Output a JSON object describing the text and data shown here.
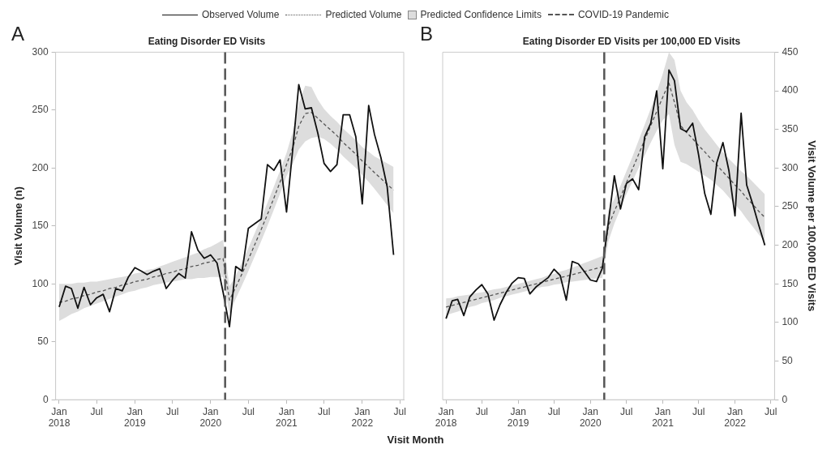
{
  "chart_data": [
    {
      "type": "line",
      "title": "Eating Disorder ED Visits",
      "xlabel": "Visit Month",
      "ylabel": "Visit Volume (n)",
      "annotations": [
        "A",
        "Predicted Confidence Limits"
      ],
      "legend": "top",
      "grid": false,
      "marker": "none",
      "x": [
        "2018-01",
        "2018-02",
        "2018-03",
        "2018-04",
        "2018-05",
        "2018-06",
        "2018-07",
        "2018-08",
        "2018-09",
        "2018-10",
        "2018-11",
        "2018-12",
        "2019-01",
        "2019-02",
        "2019-03",
        "2019-04",
        "2019-05",
        "2019-06",
        "2019-07",
        "2019-08",
        "2019-09",
        "2019-10",
        "2019-11",
        "2019-12",
        "2020-01",
        "2020-02",
        "2020-03",
        "2020-04",
        "2020-05",
        "2020-06",
        "2020-07",
        "2020-08",
        "2020-09",
        "2020-10",
        "2020-11",
        "2020-12",
        "2021-01",
        "2021-02",
        "2021-03",
        "2021-04",
        "2021-05",
        "2021-06",
        "2021-07",
        "2021-08",
        "2021-09",
        "2021-10",
        "2021-11",
        "2021-12",
        "2022-01",
        "2022-02",
        "2022-03",
        "2022-04",
        "2022-05",
        "2022-06"
      ],
      "xlim": [
        "2017-12-15",
        "2022-07-20"
      ],
      "xticks": [
        {
          "value": "2018-01",
          "label": "Jan 2018"
        },
        {
          "value": "2018-07",
          "label": "Jul"
        },
        {
          "value": "2019-01",
          "label": "Jan 2019"
        },
        {
          "value": "2019-07",
          "label": "Jul"
        },
        {
          "value": "2020-01",
          "label": "Jan 2020"
        },
        {
          "value": "2020-07",
          "label": "Jul"
        },
        {
          "value": "2021-01",
          "label": "Jan 2021"
        },
        {
          "value": "2021-07",
          "label": "Jul"
        },
        {
          "value": "2022-01",
          "label": "Jan 2022"
        },
        {
          "value": "2022-07",
          "label": "Jul"
        }
      ],
      "ylim": [
        0,
        300
      ],
      "yticks": [
        0,
        50,
        100,
        150,
        200,
        250,
        300
      ],
      "ref_lines": [
        {
          "axis": "x",
          "value": "2020-03-11",
          "label": "COVID-19 Pandemic",
          "color": "#555555",
          "line_style": "dashed"
        }
      ],
      "series": [
        {
          "name": "Observed Volume",
          "color": "#111111",
          "line_style": "solid",
          "values": [
            80,
            98,
            96,
            79,
            97,
            82,
            88,
            91,
            76,
            96,
            94,
            106,
            114,
            111,
            108,
            111,
            113,
            96,
            103,
            109,
            105,
            145,
            129,
            122,
            125,
            118,
            93,
            63,
            115,
            111,
            148,
            152,
            156,
            203,
            198,
            207,
            162,
            218,
            272,
            251,
            252,
            230,
            204,
            197,
            203,
            246,
            246,
            227,
            169,
            254,
            229,
            209,
            184,
            125
          ]
        },
        {
          "name": "Predicted Volume",
          "color": "#555555",
          "line_style": "dashed",
          "values": [
            84,
            85,
            87,
            88,
            90,
            91,
            93,
            94,
            96,
            97,
            99,
            100,
            102,
            103,
            104,
            106,
            107,
            109,
            110,
            112,
            113,
            115,
            116,
            118,
            119,
            121,
            122,
            86,
            97,
            109,
            121,
            134,
            147,
            160,
            174,
            188,
            203,
            218,
            236,
            247,
            248,
            243,
            238,
            233,
            228,
            222,
            217,
            212,
            206,
            201,
            196,
            191,
            186,
            181
          ],
          "lower": [
            68,
            71,
            74,
            76,
            79,
            81,
            83,
            85,
            87,
            89,
            91,
            93,
            94,
            96,
            97,
            99,
            100,
            101,
            102,
            103,
            104,
            104,
            105,
            105,
            106,
            106,
            106,
            74,
            87,
            99,
            111,
            124,
            137,
            150,
            164,
            178,
            193,
            204,
            216,
            223,
            226,
            227,
            225,
            221,
            216,
            210,
            205,
            200,
            194,
            188,
            182,
            175,
            168,
            161
          ],
          "upper": [
            100,
            100,
            100,
            101,
            101,
            102,
            102,
            103,
            104,
            105,
            106,
            107,
            109,
            110,
            112,
            113,
            115,
            117,
            119,
            121,
            123,
            125,
            127,
            130,
            132,
            135,
            138,
            98,
            107,
            119,
            131,
            144,
            157,
            170,
            184,
            198,
            213,
            232,
            256,
            271,
            270,
            259,
            251,
            245,
            240,
            234,
            229,
            224,
            218,
            214,
            210,
            207,
            204,
            201
          ]
        }
      ]
    },
    {
      "type": "line",
      "title": "Eating Disorder ED Visits per 100,000 ED Visits",
      "y2label": "Visit Volume per 100,000 ED Visits",
      "annotations": [
        "B"
      ],
      "grid": false,
      "marker": "none",
      "x": [
        "2018-01",
        "2018-02",
        "2018-03",
        "2018-04",
        "2018-05",
        "2018-06",
        "2018-07",
        "2018-08",
        "2018-09",
        "2018-10",
        "2018-11",
        "2018-12",
        "2019-01",
        "2019-02",
        "2019-03",
        "2019-04",
        "2019-05",
        "2019-06",
        "2019-07",
        "2019-08",
        "2019-09",
        "2019-10",
        "2019-11",
        "2019-12",
        "2020-01",
        "2020-02",
        "2020-03",
        "2020-04",
        "2020-05",
        "2020-06",
        "2020-07",
        "2020-08",
        "2020-09",
        "2020-10",
        "2020-11",
        "2020-12",
        "2021-01",
        "2021-02",
        "2021-03",
        "2021-04",
        "2021-05",
        "2021-06",
        "2021-07",
        "2021-08",
        "2021-09",
        "2021-10",
        "2021-11",
        "2021-12",
        "2022-01",
        "2022-02",
        "2022-03",
        "2022-04",
        "2022-05",
        "2022-06"
      ],
      "xlim": [
        "2017-12-15",
        "2022-07-20"
      ],
      "xticks": [
        {
          "value": "2018-01",
          "label": "Jan 2018"
        },
        {
          "value": "2018-07",
          "label": "Jul"
        },
        {
          "value": "2019-01",
          "label": "Jan 2019"
        },
        {
          "value": "2019-07",
          "label": "Jul"
        },
        {
          "value": "2020-01",
          "label": "Jan 2020"
        },
        {
          "value": "2020-07",
          "label": "Jul"
        },
        {
          "value": "2021-01",
          "label": "Jan 2021"
        },
        {
          "value": "2021-07",
          "label": "Jul"
        },
        {
          "value": "2022-01",
          "label": "Jan 2022"
        },
        {
          "value": "2022-07",
          "label": "Jul"
        }
      ],
      "y2lim": [
        0,
        450
      ],
      "y2ticks": [
        0,
        50,
        100,
        150,
        200,
        250,
        300,
        350,
        400,
        450
      ],
      "ref_lines": [
        {
          "axis": "x",
          "value": "2020-03-11",
          "color": "#555555",
          "line_style": "dashed"
        }
      ],
      "series": [
        {
          "axis": "y2",
          "color": "#111111",
          "line_style": "solid",
          "values": [
            105,
            128,
            130,
            109,
            133,
            142,
            149,
            137,
            103,
            123,
            139,
            151,
            158,
            157,
            137,
            146,
            152,
            158,
            169,
            161,
            129,
            179,
            176,
            166,
            155,
            153,
            170,
            230,
            290,
            247,
            280,
            286,
            272,
            340,
            358,
            400,
            299,
            427,
            413,
            351,
            347,
            358,
            317,
            267,
            240,
            307,
            333,
            297,
            238,
            371,
            278,
            253,
            226,
            200
          ]
        },
        {
          "axis": "y2",
          "color": "#555555",
          "line_style": "dashed",
          "values": [
            120,
            122,
            124,
            126,
            128,
            130,
            132,
            134,
            136,
            138,
            140,
            142,
            144,
            146,
            148,
            150,
            152,
            154,
            156,
            158,
            160,
            162,
            164,
            166,
            168,
            170,
            172,
            225,
            244,
            262,
            281,
            299,
            318,
            336,
            355,
            373,
            392,
            410,
            385,
            355,
            346,
            338,
            329,
            321,
            312,
            304,
            295,
            287,
            278,
            270,
            261,
            253,
            244,
            236
          ],
          "lower": [
            109,
            112,
            114,
            117,
            120,
            122,
            125,
            127,
            129,
            132,
            134,
            136,
            138,
            140,
            142,
            144,
            146,
            147,
            149,
            150,
            152,
            153,
            154,
            155,
            156,
            157,
            158,
            205,
            228,
            247,
            266,
            283,
            300,
            316,
            333,
            348,
            362,
            370,
            330,
            308,
            305,
            300,
            295,
            290,
            285,
            278,
            271,
            262,
            253,
            244,
            234,
            224,
            214,
            204
          ],
          "upper": [
            131,
            132,
            134,
            135,
            136,
            138,
            139,
            141,
            143,
            144,
            146,
            148,
            150,
            152,
            154,
            156,
            158,
            161,
            163,
            166,
            168,
            171,
            174,
            177,
            180,
            183,
            186,
            245,
            260,
            277,
            296,
            315,
            336,
            356,
            377,
            398,
            422,
            450,
            440,
            400,
            385,
            375,
            362,
            350,
            340,
            330,
            320,
            312,
            304,
            296,
            290,
            282,
            274,
            266
          ]
        }
      ]
    }
  ]
}
